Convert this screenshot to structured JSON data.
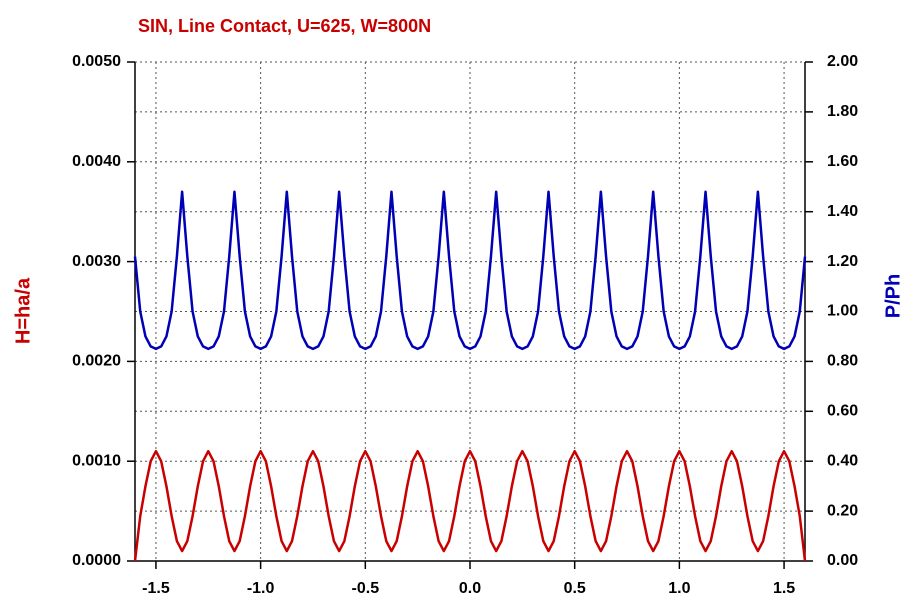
{
  "chart_data": {
    "type": "line",
    "title": "SIN, Line Contact, U=625, W=800N",
    "ylabel": "H=ha/a",
    "y2label": "P/Ph",
    "x": [
      -1.6,
      -1.575,
      -1.55,
      -1.525,
      -1.5,
      -1.475,
      -1.45,
      -1.425,
      -1.4,
      -1.375,
      -1.35,
      -1.325,
      -1.3,
      -1.275,
      -1.25,
      -1.225,
      -1.2,
      -1.175,
      -1.15,
      -1.125,
      -1.1,
      -1.075,
      -1.05,
      -1.025,
      -1,
      -0.975,
      -0.95,
      -0.925,
      -0.9,
      -0.875,
      -0.85,
      -0.825,
      -0.8,
      -0.775,
      -0.75,
      -0.725,
      -0.7,
      -0.675,
      -0.65,
      -0.625,
      -0.6,
      -0.575,
      -0.55,
      -0.525,
      -0.5,
      -0.475,
      -0.45,
      -0.425,
      -0.4,
      -0.375,
      -0.35,
      -0.325,
      -0.3,
      -0.275,
      -0.25,
      -0.225,
      -0.2,
      -0.175,
      -0.15,
      -0.125,
      -0.1,
      -0.075,
      -0.05,
      -0.025,
      0,
      0.025,
      0.05,
      0.075,
      0.1,
      0.125,
      0.15,
      0.175,
      0.2,
      0.225,
      0.25,
      0.275,
      0.3,
      0.325,
      0.35,
      0.375,
      0.4,
      0.425,
      0.45,
      0.475,
      0.5,
      0.525,
      0.55,
      0.575,
      0.6,
      0.625,
      0.65,
      0.675,
      0.7,
      0.725,
      0.75,
      0.775,
      0.8,
      0.825,
      0.85,
      0.875,
      0.9,
      0.925,
      0.95,
      0.975,
      1,
      1.025,
      1.05,
      1.075,
      1.1,
      1.125,
      1.15,
      1.175,
      1.2,
      1.225,
      1.25,
      1.275,
      1.3,
      1.325,
      1.35,
      1.375,
      1.4,
      1.425,
      1.45,
      1.475,
      1.5,
      1.525,
      1.55,
      1.575,
      1.6
    ],
    "xlim": [
      -1.6,
      1.6
    ],
    "xticks": [
      -1.5,
      {
        "value": -1,
        "label": "-1.0"
      },
      -0.5,
      {
        "value": 0,
        "label": "0.0"
      },
      0.5,
      {
        "value": 1,
        "label": "1.0"
      },
      1.5
    ],
    "ylim": [
      0,
      0.005
    ],
    "yticks": [
      {
        "value": 0,
        "label": "0.0000"
      },
      {
        "value": 0.001,
        "label": "0.0010"
      },
      {
        "value": 0.002,
        "label": "0.0020"
      },
      {
        "value": 0.003,
        "label": "0.0030"
      },
      {
        "value": 0.004,
        "label": "0.0040"
      },
      {
        "value": 0.005,
        "label": "0.0050"
      }
    ],
    "y2lim": [
      0,
      2
    ],
    "y2ticks": [
      {
        "value": 0,
        "label": "0.00"
      },
      {
        "value": 0.2,
        "label": "0.20"
      },
      {
        "value": 0.4,
        "label": "0.40"
      },
      {
        "value": 0.6,
        "label": "0.60"
      },
      {
        "value": 0.8,
        "label": "0.80"
      },
      {
        "value": 1,
        "label": "1.00"
      },
      {
        "value": 1.2,
        "label": "1.20"
      },
      {
        "value": 1.4,
        "label": "1.40"
      },
      {
        "value": 1.6,
        "label": "1.60"
      },
      {
        "value": 1.8,
        "label": "1.80"
      },
      {
        "value": 2,
        "label": "2.00"
      }
    ],
    "grid": true,
    "series": [
      {
        "name": "H=ha/a",
        "color": "#c80000",
        "axis": "y",
        "values": [
          0,
          0.00045,
          0.00075,
          0.001,
          0.0011,
          0.001,
          0.00075,
          0.00045,
          0.0002,
          0.0001,
          0.0002,
          0.00045,
          0.00075,
          0.001,
          0.0011,
          0.001,
          0.00075,
          0.00045,
          0.0002,
          0.0001,
          0.0002,
          0.00045,
          0.00075,
          0.001,
          0.0011,
          0.001,
          0.00075,
          0.00045,
          0.0002,
          0.0001,
          0.0002,
          0.00045,
          0.00075,
          0.001,
          0.0011,
          0.001,
          0.00075,
          0.00045,
          0.0002,
          0.0001,
          0.0002,
          0.00045,
          0.00075,
          0.001,
          0.0011,
          0.001,
          0.00075,
          0.00045,
          0.0002,
          0.0001,
          0.0002,
          0.00045,
          0.00075,
          0.001,
          0.0011,
          0.001,
          0.00075,
          0.00045,
          0.0002,
          0.0001,
          0.0002,
          0.00045,
          0.00075,
          0.001,
          0.0011,
          0.001,
          0.00075,
          0.00045,
          0.0002,
          0.0001,
          0.0002,
          0.00045,
          0.00075,
          0.001,
          0.0011,
          0.001,
          0.00075,
          0.00045,
          0.0002,
          0.0001,
          0.0002,
          0.00045,
          0.00075,
          0.001,
          0.0011,
          0.001,
          0.00075,
          0.00045,
          0.0002,
          0.0001,
          0.0002,
          0.00045,
          0.00075,
          0.001,
          0.0011,
          0.001,
          0.00075,
          0.00045,
          0.0002,
          0.0001,
          0.0002,
          0.00045,
          0.00075,
          0.001,
          0.0011,
          0.001,
          0.00075,
          0.00045,
          0.0002,
          0.0001,
          0.0002,
          0.00045,
          0.00075,
          0.001,
          0.0011,
          0.001,
          0.00075,
          0.00045,
          0.0002,
          0.0001,
          0.0002,
          0.00045,
          0.00075,
          0.001,
          0.0011,
          0.001,
          0.00075,
          0.00045,
          0
        ]
      },
      {
        "name": "P/Ph",
        "color": "#0000b4",
        "axis": "y2",
        "values": [
          1.22,
          1.0,
          0.9,
          0.86,
          0.85,
          0.86,
          0.9,
          1.0,
          1.22,
          1.48,
          1.22,
          1.0,
          0.9,
          0.86,
          0.85,
          0.86,
          0.9,
          1.0,
          1.22,
          1.48,
          1.22,
          1.0,
          0.9,
          0.86,
          0.85,
          0.86,
          0.9,
          1.0,
          1.22,
          1.48,
          1.22,
          1.0,
          0.9,
          0.86,
          0.85,
          0.86,
          0.9,
          1.0,
          1.22,
          1.48,
          1.22,
          1.0,
          0.9,
          0.86,
          0.85,
          0.86,
          0.9,
          1.0,
          1.22,
          1.48,
          1.22,
          1.0,
          0.9,
          0.86,
          0.85,
          0.86,
          0.9,
          1.0,
          1.22,
          1.48,
          1.22,
          1.0,
          0.9,
          0.86,
          0.85,
          0.86,
          0.9,
          1.0,
          1.22,
          1.48,
          1.22,
          1.0,
          0.9,
          0.86,
          0.85,
          0.86,
          0.9,
          1.0,
          1.22,
          1.48,
          1.22,
          1.0,
          0.9,
          0.86,
          0.85,
          0.86,
          0.9,
          1.0,
          1.22,
          1.48,
          1.22,
          1.0,
          0.9,
          0.86,
          0.85,
          0.86,
          0.9,
          1.0,
          1.22,
          1.48,
          1.22,
          1.0,
          0.9,
          0.86,
          0.85,
          0.86,
          0.9,
          1.0,
          1.22,
          1.48,
          1.22,
          1.0,
          0.9,
          0.86,
          0.85,
          0.86,
          0.9,
          1.0,
          1.22,
          1.48,
          1.22,
          1.0,
          0.9,
          0.86,
          0.85,
          0.86,
          0.9,
          1.0,
          1.22
        ]
      }
    ]
  }
}
